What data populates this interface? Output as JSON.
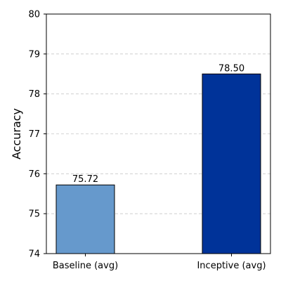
{
  "chart_data": {
    "type": "bar",
    "title": "",
    "xlabel": "",
    "ylabel": "Accuracy",
    "categories": [
      "Baseline (avg)",
      "Inceptive (avg)"
    ],
    "values": [
      75.72,
      78.5
    ],
    "data_labels": [
      "75.72",
      "78.50"
    ],
    "bar_colors": [
      "#6699cc",
      "#003399"
    ],
    "bar_edge_color": "#000000",
    "ylim": [
      74,
      80
    ],
    "yticks": [
      74,
      75,
      76,
      77,
      78,
      79,
      80
    ],
    "grid": "y-dashed",
    "legend": "none"
  }
}
